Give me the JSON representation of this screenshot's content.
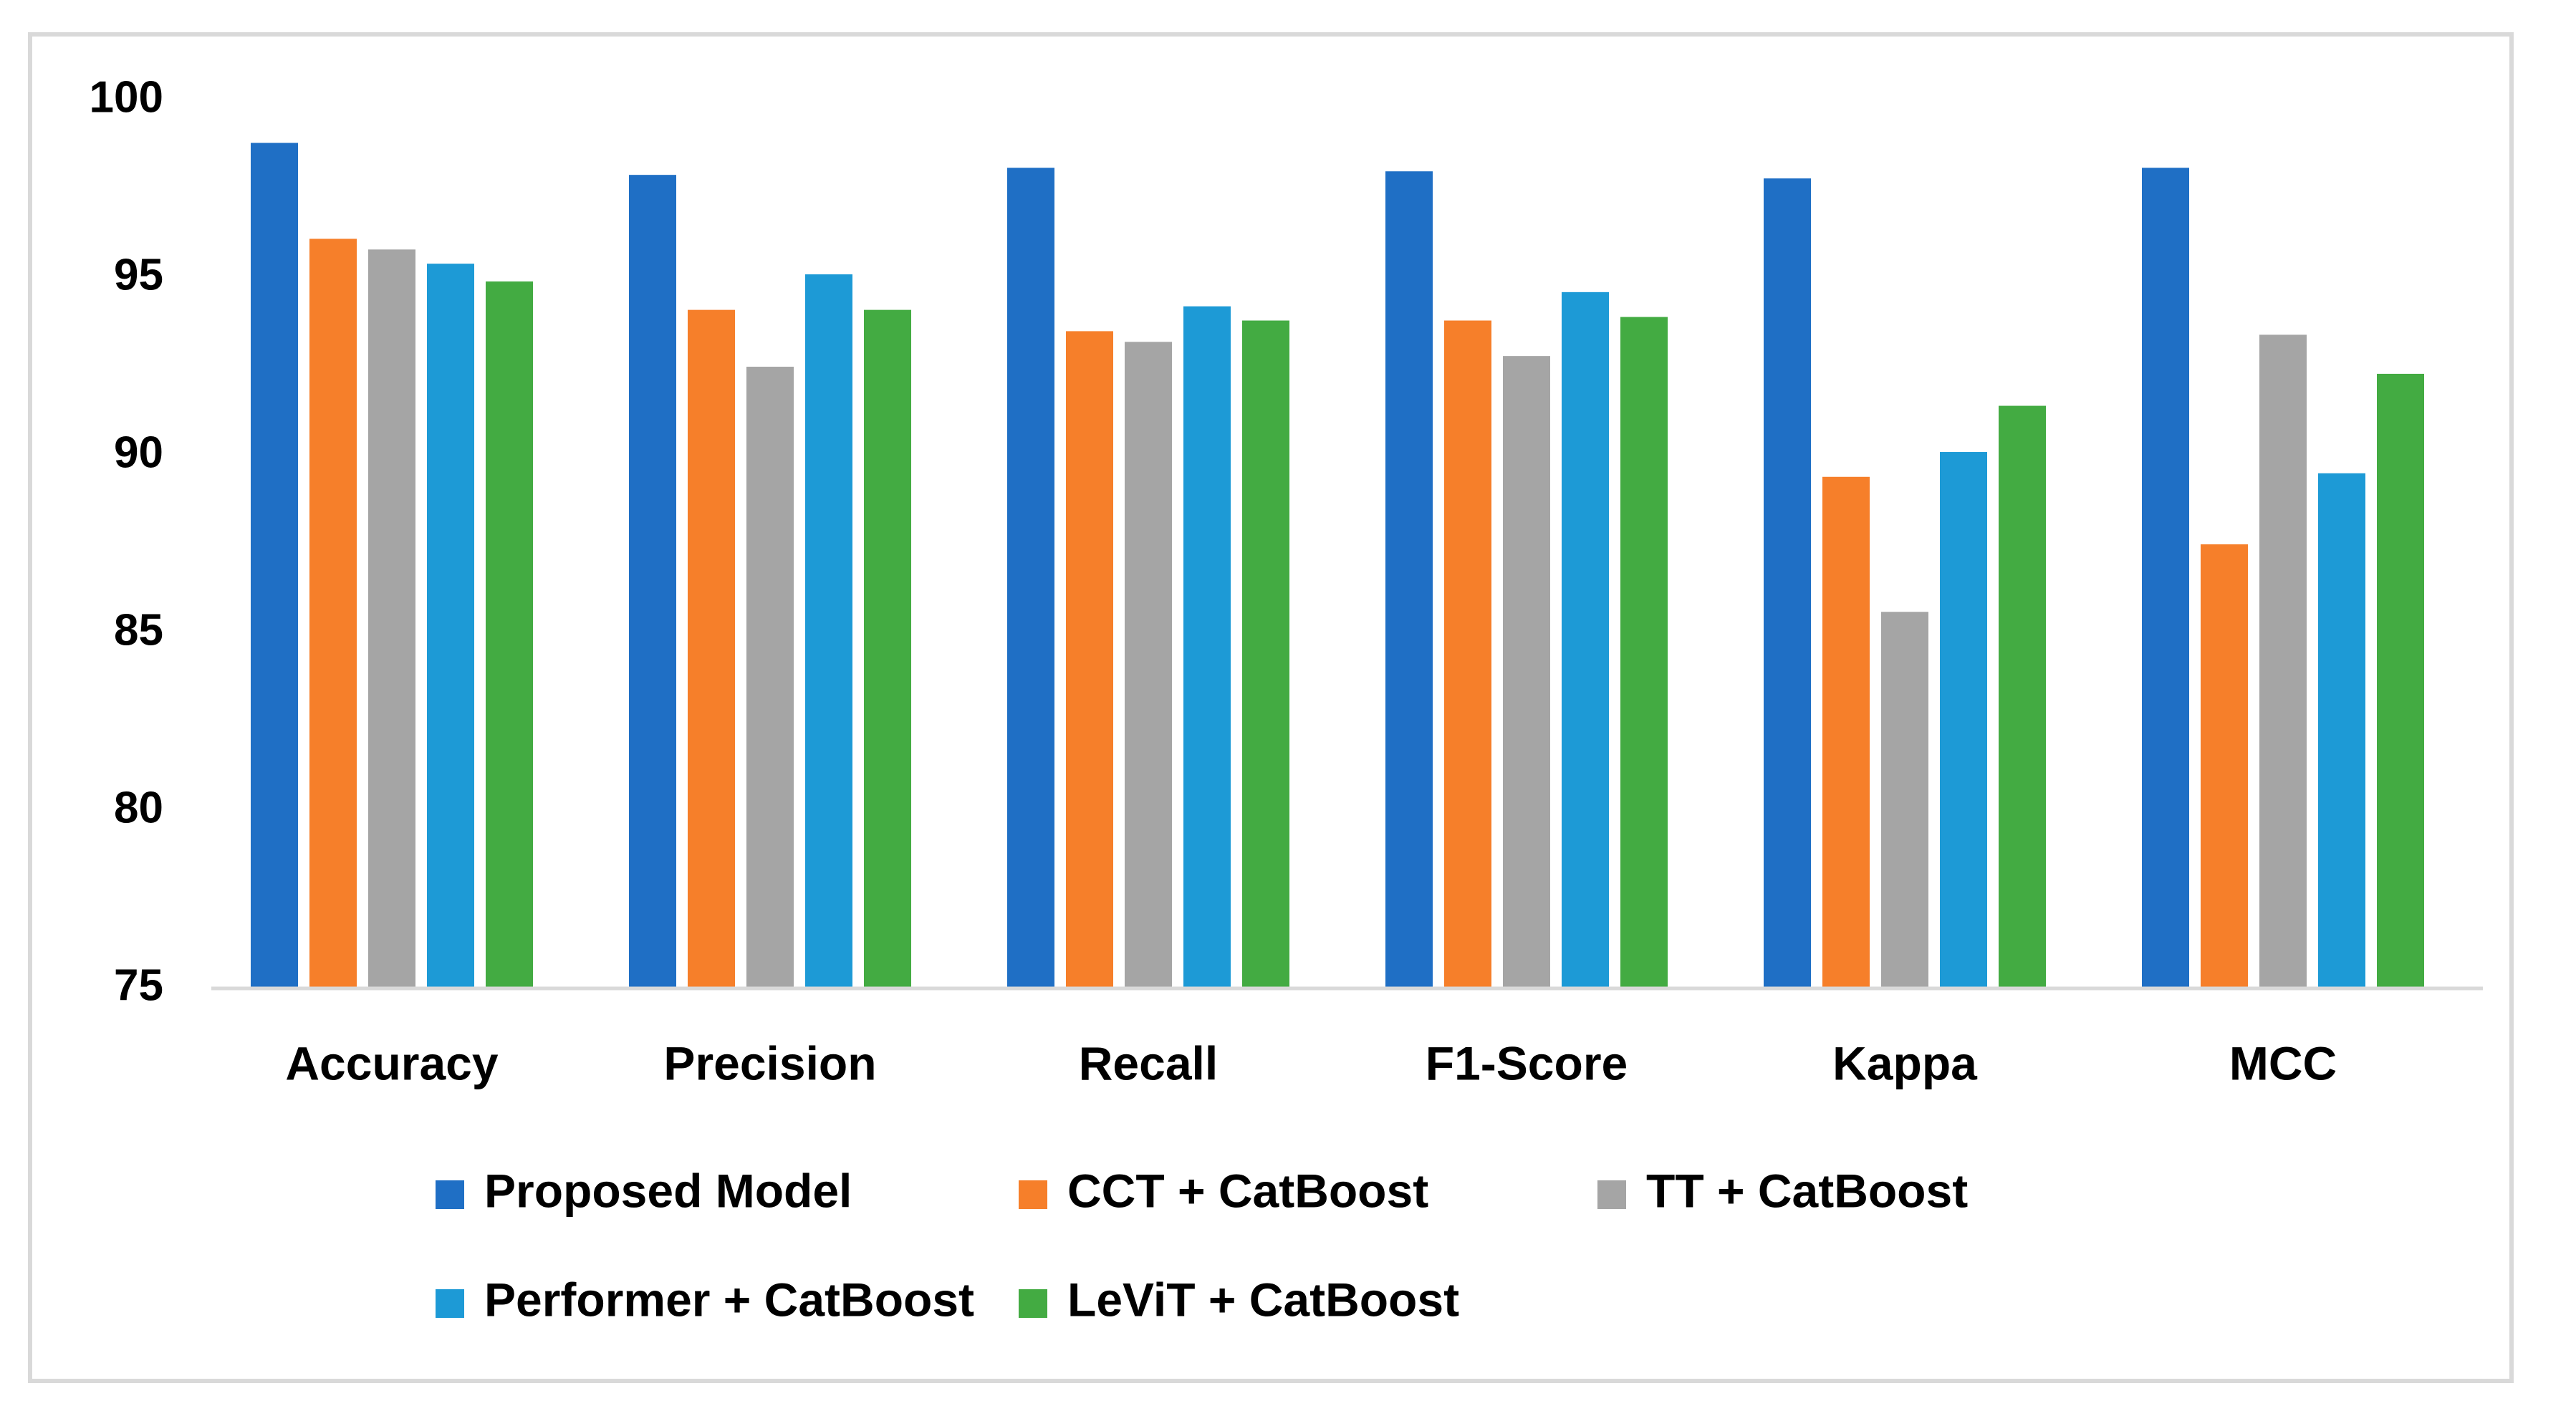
{
  "chart_data": {
    "type": "bar",
    "title": "",
    "xlabel": "",
    "ylabel": "",
    "ylim": [
      75,
      100
    ],
    "yticks": [
      75,
      80,
      85,
      90,
      95,
      100
    ],
    "grid": false,
    "legend_position": "bottom",
    "categories": [
      "Accuracy",
      "Precision",
      "Recall",
      "F1-Score",
      "Kappa",
      "MCC"
    ],
    "series": [
      {
        "name": "Proposed Model",
        "color": "#1F6FC5",
        "values": [
          98.8,
          97.9,
          98.1,
          98.0,
          97.8,
          98.1
        ]
      },
      {
        "name": "CCT + CatBoost",
        "color": "#F67F2A",
        "values": [
          96.1,
          94.1,
          93.5,
          93.8,
          89.4,
          87.5
        ]
      },
      {
        "name": "TT + CatBoost",
        "color": "#A5A5A5",
        "values": [
          95.8,
          92.5,
          93.2,
          92.8,
          85.6,
          93.4
        ]
      },
      {
        "name": "Performer + CatBoost",
        "color": "#1D9AD6",
        "values": [
          95.4,
          95.1,
          94.2,
          94.6,
          90.1,
          89.5
        ]
      },
      {
        "name": "LeViT + CatBoost",
        "color": "#43AB42",
        "values": [
          94.9,
          94.1,
          93.8,
          93.9,
          91.4,
          92.3
        ]
      }
    ]
  }
}
